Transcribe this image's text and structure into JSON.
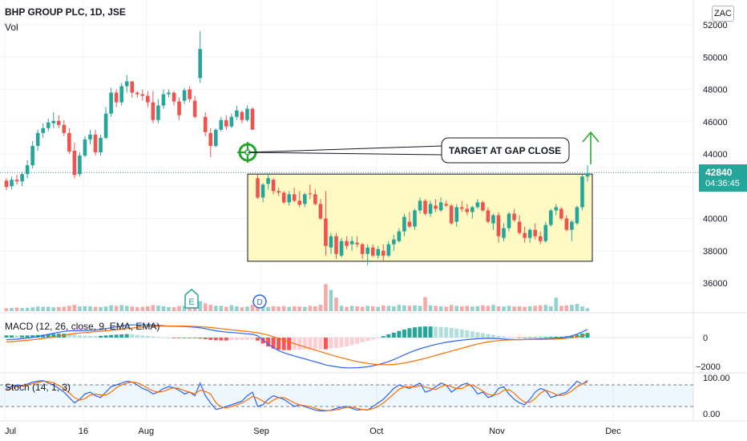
{
  "header": {
    "title": "BHP GROUP PLC, 1D, JSE",
    "volume_label": "Vol",
    "currency": "ZAC"
  },
  "price_tag": {
    "price": "42840",
    "countdown": "04:36:45"
  },
  "annotation": {
    "callout_text": "TARGET AT GAP CLOSE"
  },
  "events": {
    "earnings": "E",
    "dividend": "D"
  },
  "indicators": {
    "macd_label": "MACD (12, 26, close, 9, EMA, EMA)",
    "macd_ticks": [
      "0",
      "−2000"
    ],
    "stoch_label": "Stoch (14, 1, 3)",
    "stoch_ticks": [
      "100.00",
      "0.00"
    ]
  },
  "colors": {
    "up": "#26a69a",
    "down": "#ef5350",
    "box_fill": "#fff9c4",
    "target": "#22a629"
  },
  "chart_data": {
    "type": "candlestick",
    "title": "BHP GROUP PLC, 1D, JSE",
    "x_ticks": [
      "Jul",
      "16",
      "Aug",
      "Sep",
      "Oct",
      "Nov",
      "Dec"
    ],
    "y_ticks": [
      36000,
      38000,
      40000,
      42000,
      44000,
      46000,
      48000,
      50000,
      52000
    ],
    "ylim": [
      34900,
      52400
    ],
    "target_price": 44100,
    "gap_zone": {
      "from": 37350,
      "to": 42750
    },
    "last_price": 42840,
    "candles": [
      [
        42350,
        42500,
        41750,
        41950
      ],
      [
        42000,
        42600,
        41800,
        42400
      ],
      [
        42400,
        42700,
        42100,
        42300
      ],
      [
        42300,
        42900,
        42000,
        42750
      ],
      [
        42750,
        43600,
        42500,
        43300
      ],
      [
        43300,
        44800,
        43100,
        44500
      ],
      [
        44500,
        45500,
        44200,
        45300
      ],
      [
        45300,
        45900,
        45000,
        45600
      ],
      [
        45600,
        46200,
        45400,
        45950
      ],
      [
        45900,
        46600,
        45600,
        46050
      ],
      [
        46050,
        46400,
        45600,
        45800
      ],
      [
        45800,
        46100,
        45100,
        45300
      ],
      [
        45300,
        45600,
        44000,
        44150
      ],
      [
        44200,
        44700,
        42500,
        42700
      ],
      [
        42750,
        44100,
        42600,
        43900
      ],
      [
        43900,
        45100,
        43800,
        44900
      ],
      [
        44900,
        45500,
        44600,
        45200
      ],
      [
        45200,
        45500,
        43900,
        44100
      ],
      [
        44100,
        45200,
        43900,
        45000
      ],
      [
        45000,
        46900,
        44900,
        46500
      ],
      [
        46500,
        48100,
        46300,
        47800
      ],
      [
        47800,
        48000,
        46900,
        47200
      ],
      [
        47200,
        48400,
        47000,
        48200
      ],
      [
        48200,
        48900,
        47800,
        48500
      ],
      [
        48500,
        48500,
        47500,
        47800
      ],
      [
        47800,
        47900,
        47500,
        47700
      ],
      [
        47700,
        48000,
        47300,
        47600
      ],
      [
        47600,
        47900,
        46900,
        47200
      ],
      [
        47200,
        47900,
        45900,
        46100
      ],
      [
        46100,
        47400,
        45900,
        47000
      ],
      [
        47000,
        48000,
        46800,
        47700
      ],
      [
        47700,
        48000,
        47500,
        47800
      ],
      [
        47800,
        47900,
        47000,
        47250
      ],
      [
        47250,
        47500,
        46100,
        46400
      ],
      [
        47300,
        48100,
        47100,
        47950
      ],
      [
        48000,
        48200,
        47200,
        47400
      ],
      [
        47300,
        47600,
        46200,
        46300
      ],
      [
        48700,
        51600,
        48400,
        50500
      ],
      [
        46300,
        46600,
        45100,
        45350
      ],
      [
        45300,
        45600,
        43800,
        44500
      ],
      [
        44500,
        45600,
        44400,
        45500
      ],
      [
        45500,
        46300,
        45400,
        46100
      ],
      [
        46100,
        46400,
        45500,
        45700
      ],
      [
        45700,
        46500,
        45600,
        46300
      ],
      [
        46300,
        47000,
        46100,
        46700
      ],
      [
        46600,
        46700,
        45900,
        46100
      ],
      [
        46100,
        47000,
        46000,
        46800
      ],
      [
        46800,
        46900,
        45500,
        45500
      ],
      [
        42500,
        42700,
        41200,
        41300
      ],
      [
        41300,
        42200,
        41000,
        42100
      ],
      [
        42150,
        42800,
        41800,
        42500
      ],
      [
        42400,
        42500,
        41500,
        41700
      ],
      [
        41700,
        41900,
        41400,
        41600
      ],
      [
        41600,
        41700,
        40900,
        41000
      ],
      [
        41000,
        41700,
        40800,
        41500
      ],
      [
        41500,
        41900,
        41000,
        41100
      ],
      [
        41100,
        41700,
        40700,
        40850
      ],
      [
        40900,
        41600,
        40700,
        41500
      ],
      [
        41550,
        42100,
        41200,
        41500
      ],
      [
        41500,
        41800,
        40800,
        40900
      ],
      [
        40900,
        41200,
        39900,
        40000
      ],
      [
        40000,
        41700,
        37700,
        38300
      ],
      [
        38200,
        39100,
        37800,
        38900
      ],
      [
        38900,
        39100,
        37500,
        37800
      ],
      [
        37700,
        38800,
        37600,
        38600
      ],
      [
        38600,
        38900,
        38100,
        38300
      ],
      [
        38400,
        38900,
        38000,
        38600
      ],
      [
        38500,
        38900,
        38200,
        38400
      ],
      [
        38400,
        38500,
        37500,
        37800
      ],
      [
        37800,
        38400,
        37100,
        38200
      ],
      [
        38200,
        38400,
        37600,
        37700
      ],
      [
        37700,
        38300,
        37500,
        38100
      ],
      [
        38000,
        38400,
        37400,
        37700
      ],
      [
        37700,
        38600,
        37600,
        38400
      ],
      [
        38400,
        39000,
        38000,
        38700
      ],
      [
        38600,
        39400,
        38500,
        39200
      ],
      [
        39200,
        40300,
        38900,
        40100
      ],
      [
        39800,
        40400,
        39400,
        39500
      ],
      [
        39500,
        40600,
        39300,
        40500
      ],
      [
        40500,
        41300,
        40300,
        41100
      ],
      [
        41100,
        41200,
        40200,
        40300
      ],
      [
        40300,
        41100,
        40100,
        40900
      ],
      [
        40800,
        41200,
        40400,
        40600
      ],
      [
        40500,
        41300,
        40400,
        41000
      ],
      [
        40900,
        41100,
        40700,
        40800
      ],
      [
        40800,
        40900,
        39600,
        39700
      ],
      [
        39800,
        40900,
        39500,
        40700
      ],
      [
        40700,
        41100,
        40400,
        40600
      ],
      [
        40600,
        40900,
        40200,
        40400
      ],
      [
        40400,
        40800,
        40000,
        40700
      ],
      [
        40700,
        41200,
        40600,
        41000
      ],
      [
        41000,
        41100,
        40400,
        40500
      ],
      [
        40500,
        40700,
        39700,
        39800
      ],
      [
        39700,
        40300,
        39300,
        40200
      ],
      [
        40200,
        40400,
        38500,
        38900
      ],
      [
        38800,
        39700,
        38600,
        39400
      ],
      [
        39400,
        40400,
        39200,
        40300
      ],
      [
        40300,
        40600,
        39800,
        39900
      ],
      [
        39800,
        40200,
        39000,
        39100
      ],
      [
        39100,
        39500,
        38500,
        38800
      ],
      [
        38800,
        39400,
        38500,
        39300
      ],
      [
        39300,
        39700,
        38700,
        38900
      ],
      [
        38900,
        39200,
        38400,
        38600
      ],
      [
        38600,
        39800,
        38500,
        39600
      ],
      [
        39600,
        40600,
        39500,
        40500
      ],
      [
        40500,
        40900,
        40200,
        40700
      ],
      [
        40600,
        40700,
        39900,
        40000
      ],
      [
        40000,
        40200,
        39200,
        39300
      ],
      [
        39300,
        39900,
        38600,
        39800
      ],
      [
        39700,
        40800,
        39600,
        40700
      ],
      [
        40700,
        42700,
        40500,
        42600
      ],
      [
        42600,
        43300,
        42300,
        42800
      ]
    ],
    "volume_relative": [
      0.3,
      0.32,
      0.38,
      0.32,
      0.35,
      0.4,
      0.48,
      0.45,
      0.45,
      0.4,
      0.42,
      0.45,
      0.55,
      0.65,
      0.5,
      0.52,
      0.5,
      0.45,
      0.42,
      0.48,
      0.6,
      0.55,
      0.62,
      0.55,
      0.48,
      0.42,
      0.45,
      0.5,
      0.62,
      0.58,
      0.5,
      0.42,
      0.4,
      0.52,
      0.55,
      0.5,
      0.48,
      1.05,
      0.8,
      0.65,
      0.55,
      0.55,
      0.45,
      0.62,
      0.5,
      0.4,
      0.48,
      0.65,
      0.7,
      0.55,
      0.42,
      0.5,
      0.48,
      0.52,
      0.45,
      0.5,
      0.48,
      0.45,
      0.55,
      0.5,
      0.65,
      2.8,
      2.2,
      1.4,
      0.55,
      0.45,
      0.55,
      0.5,
      0.45,
      0.55,
      0.5,
      0.45,
      0.6,
      0.55,
      0.5,
      0.65,
      0.6,
      0.55,
      0.6,
      0.55,
      1.45,
      0.6,
      0.55,
      0.5,
      0.45,
      0.65,
      0.55,
      0.5,
      0.55,
      0.48,
      0.52,
      0.6,
      0.55,
      0.65,
      0.5,
      0.48,
      0.55,
      0.48,
      0.5,
      0.45,
      0.5,
      0.55,
      0.6,
      0.65,
      0.5,
      1.4,
      0.55,
      0.6,
      0.65,
      0.75,
      0.48,
      0.3
    ],
    "macd": [
      -150,
      -130,
      -110,
      -80,
      -40,
      10,
      70,
      140,
      220,
      300,
      370,
      430,
      460,
      470,
      470,
      480,
      500,
      520,
      560,
      620,
      680,
      740,
      800,
      860,
      880,
      880,
      880,
      880,
      860,
      840,
      820,
      800,
      790,
      780,
      760,
      740,
      720,
      680,
      620,
      540,
      470,
      420,
      380,
      350,
      320,
      290,
      260,
      230,
      120,
      -150,
      -450,
      -700,
      -900,
      -1050,
      -1170,
      -1270,
      -1380,
      -1480,
      -1580,
      -1680,
      -1780,
      -1900,
      -1960,
      -2020,
      -2080,
      -2100,
      -2100,
      -2090,
      -2060,
      -2020,
      -1960,
      -1880,
      -1780,
      -1660,
      -1520,
      -1360,
      -1200,
      -1040,
      -900,
      -780,
      -670,
      -570,
      -480,
      -400,
      -330,
      -270,
      -220,
      -180,
      -140,
      -110,
      -80,
      -60,
      -50,
      -60,
      -80,
      -100,
      -120,
      -140,
      -150,
      -130,
      -110,
      -100,
      -90,
      -80,
      -60,
      -40,
      -20,
      40,
      120,
      240,
      400,
      560
    ],
    "macd_signal": [
      -300,
      -280,
      -250,
      -220,
      -190,
      -150,
      -110,
      -60,
      -10,
      40,
      100,
      160,
      220,
      270,
      310,
      350,
      380,
      410,
      440,
      470,
      500,
      540,
      580,
      620,
      660,
      700,
      730,
      760,
      780,
      790,
      800,
      800,
      800,
      800,
      790,
      780,
      770,
      750,
      730,
      700,
      660,
      620,
      580,
      540,
      500,
      460,
      420,
      380,
      330,
      260,
      170,
      60,
      -60,
      -180,
      -300,
      -420,
      -540,
      -650,
      -760,
      -870,
      -980,
      -1090,
      -1200,
      -1300,
      -1400,
      -1490,
      -1580,
      -1660,
      -1730,
      -1790,
      -1840,
      -1870,
      -1880,
      -1880,
      -1860,
      -1820,
      -1760,
      -1690,
      -1610,
      -1530,
      -1440,
      -1340,
      -1240,
      -1140,
      -1040,
      -940,
      -840,
      -740,
      -640,
      -540,
      -450,
      -370,
      -300,
      -250,
      -210,
      -180,
      -160,
      -150,
      -145,
      -140,
      -135,
      -130,
      -125,
      -120,
      -110,
      -100,
      -80,
      -50,
      -10,
      40,
      120,
      240
    ],
    "stoch_k": [
      70,
      75,
      80,
      78,
      82,
      88,
      90,
      92,
      85,
      80,
      70,
      60,
      45,
      30,
      40,
      55,
      60,
      50,
      45,
      60,
      75,
      80,
      85,
      90,
      88,
      80,
      70,
      65,
      55,
      60,
      70,
      75,
      72,
      65,
      55,
      60,
      50,
      85,
      50,
      30,
      12,
      15,
      20,
      25,
      30,
      35,
      50,
      60,
      20,
      25,
      40,
      50,
      45,
      40,
      30,
      20,
      25,
      20,
      15,
      10,
      8,
      8,
      10,
      15,
      18,
      20,
      15,
      10,
      12,
      10,
      20,
      30,
      40,
      55,
      70,
      80,
      75,
      70,
      78,
      85,
      60,
      65,
      75,
      85,
      80,
      60,
      70,
      80,
      85,
      75,
      55,
      60,
      45,
      50,
      70,
      75,
      55,
      40,
      30,
      25,
      40,
      60,
      70,
      65,
      45,
      50,
      55,
      60,
      75,
      90,
      82,
      92
    ],
    "stoch_d": [
      65,
      70,
      75,
      78,
      80,
      83,
      87,
      90,
      89,
      86,
      78,
      70,
      58,
      45,
      38,
      42,
      52,
      55,
      52,
      52,
      60,
      72,
      80,
      85,
      88,
      86,
      79,
      71,
      63,
      60,
      62,
      68,
      72,
      70,
      64,
      60,
      55,
      65,
      62,
      55,
      31,
      19,
      16,
      20,
      25,
      30,
      38,
      48,
      43,
      35,
      28,
      38,
      45,
      45,
      38,
      30,
      25,
      22,
      20,
      15,
      11,
      9,
      9,
      11,
      14,
      18,
      18,
      15,
      12,
      11,
      14,
      20,
      30,
      42,
      55,
      68,
      75,
      75,
      74,
      78,
      74,
      70,
      67,
      75,
      80,
      75,
      70,
      70,
      78,
      80,
      72,
      63,
      53,
      52,
      55,
      65,
      67,
      57,
      42,
      32,
      32,
      42,
      57,
      65,
      60,
      53,
      50,
      55,
      63,
      75,
      82,
      88
    ]
  }
}
